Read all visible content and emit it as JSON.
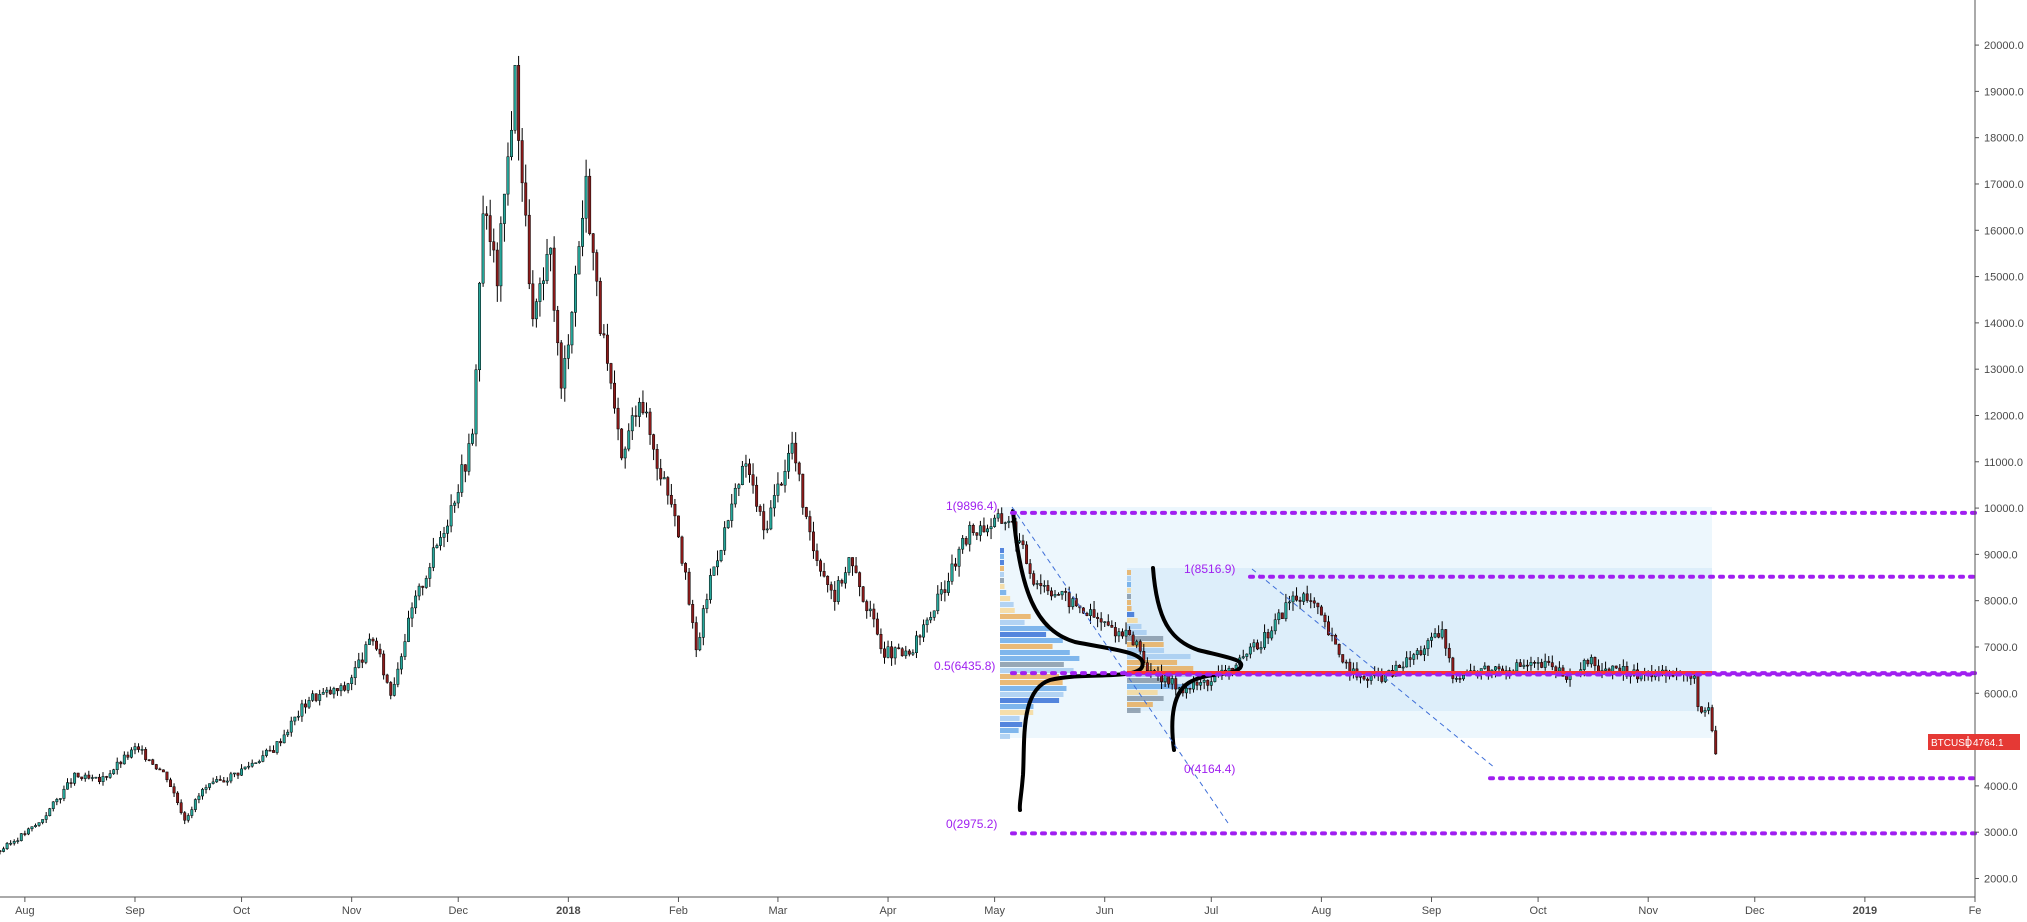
{
  "chart_data": {
    "type": "candlestick",
    "symbol": "BTCUSD",
    "last_price": "4764.1",
    "ylim": [
      1600,
      20800
    ],
    "y_ticks": [
      "2000.0",
      "3000.0",
      "4000.0",
      "5000.0",
      "6000.0",
      "7000.0",
      "8000.0",
      "9000.0",
      "10000.0",
      "11000.0",
      "12000.0",
      "13000.0",
      "14000.0",
      "15000.0",
      "16000.0",
      "17000.0",
      "18000.0",
      "19000.0",
      "20000.0"
    ],
    "x_ticks": [
      "Aug",
      "Sep",
      "Oct",
      "Nov",
      "Dec",
      "2018",
      "Feb",
      "Mar",
      "Apr",
      "May",
      "Jun",
      "Jul",
      "Aug",
      "Sep",
      "Oct",
      "Nov",
      "Dec",
      "2019",
      "Fe"
    ],
    "x_start": "2017-07-25",
    "x_end": "2019-02-01",
    "price_path": [
      [
        "2017-07-25",
        2600
      ],
      [
        "2017-08-05",
        3200
      ],
      [
        "2017-08-15",
        4200
      ],
      [
        "2017-08-22",
        4100
      ],
      [
        "2017-09-01",
        4800
      ],
      [
        "2017-09-05",
        4600
      ],
      [
        "2017-09-10",
        4200
      ],
      [
        "2017-09-15",
        3300
      ],
      [
        "2017-09-20",
        3900
      ],
      [
        "2017-09-30",
        4300
      ],
      [
        "2017-10-10",
        4800
      ],
      [
        "2017-10-20",
        5900
      ],
      [
        "2017-10-30",
        6100
      ],
      [
        "2017-11-07",
        7200
      ],
      [
        "2017-11-12",
        6000
      ],
      [
        "2017-11-18",
        7800
      ],
      [
        "2017-11-28",
        9800
      ],
      [
        "2017-12-05",
        11500
      ],
      [
        "2017-12-08",
        16500
      ],
      [
        "2017-12-12",
        15000
      ],
      [
        "2017-12-17",
        19300
      ],
      [
        "2017-12-22",
        14000
      ],
      [
        "2017-12-27",
        15500
      ],
      [
        "2017-12-30",
        12500
      ],
      [
        "2018-01-06",
        17000
      ],
      [
        "2018-01-10",
        14000
      ],
      [
        "2018-01-16",
        11000
      ],
      [
        "2018-01-21",
        12500
      ],
      [
        "2018-01-26",
        11000
      ],
      [
        "2018-01-31",
        10000
      ],
      [
        "2018-02-06",
        6900
      ],
      [
        "2018-02-10",
        8500
      ],
      [
        "2018-02-20",
        11000
      ],
      [
        "2018-02-25",
        9500
      ],
      [
        "2018-03-05",
        11400
      ],
      [
        "2018-03-10",
        9300
      ],
      [
        "2018-03-17",
        8100
      ],
      [
        "2018-03-21",
        8900
      ],
      [
        "2018-03-31",
        6900
      ],
      [
        "2018-04-07",
        6800
      ],
      [
        "2018-04-15",
        8000
      ],
      [
        "2018-04-24",
        9500
      ],
      [
        "2018-05-05",
        9800
      ],
      [
        "2018-05-12",
        8500
      ],
      [
        "2018-05-22",
        8000
      ],
      [
        "2018-06-01",
        7500
      ],
      [
        "2018-06-10",
        7100
      ],
      [
        "2018-06-14",
        6400
      ],
      [
        "2018-06-24",
        6100
      ],
      [
        "2018-07-01",
        6300
      ],
      [
        "2018-07-10",
        6700
      ],
      [
        "2018-07-17",
        7300
      ],
      [
        "2018-07-24",
        8100
      ],
      [
        "2018-07-30",
        7900
      ],
      [
        "2018-08-05",
        7000
      ],
      [
        "2018-08-11",
        6300
      ],
      [
        "2018-08-20",
        6400
      ],
      [
        "2018-08-30",
        7000
      ],
      [
        "2018-09-04",
        7300
      ],
      [
        "2018-09-07",
        6400
      ],
      [
        "2018-09-15",
        6500
      ],
      [
        "2018-09-25",
        6600
      ],
      [
        "2018-10-05",
        6600
      ],
      [
        "2018-10-11",
        6300
      ],
      [
        "2018-10-15",
        6700
      ],
      [
        "2018-10-20",
        6500
      ],
      [
        "2018-10-31",
        6400
      ],
      [
        "2018-11-08",
        6500
      ],
      [
        "2018-11-14",
        6300
      ],
      [
        "2018-11-15",
        5600
      ],
      [
        "2018-11-18",
        5600
      ],
      [
        "2018-11-20",
        4700
      ]
    ],
    "fib_labels": {
      "first_1": "1(9896.4)",
      "first_05": "0.5(6435.8)",
      "first_0": "0(2975.2)",
      "second_1": "1(8516.9)",
      "second_0": "0(4164.4)"
    },
    "fib_levels": [
      9896.4,
      8516.9,
      6435.8,
      4164.4,
      2975.2
    ],
    "support_line": 6450,
    "colors": {
      "up": "#26a69a",
      "down": "#8b1a1a",
      "wick": "#000000",
      "fib_line": "#a020f0",
      "support": "#ff3030",
      "badge": "#e53935",
      "range_fill": "#dff0fb"
    }
  }
}
